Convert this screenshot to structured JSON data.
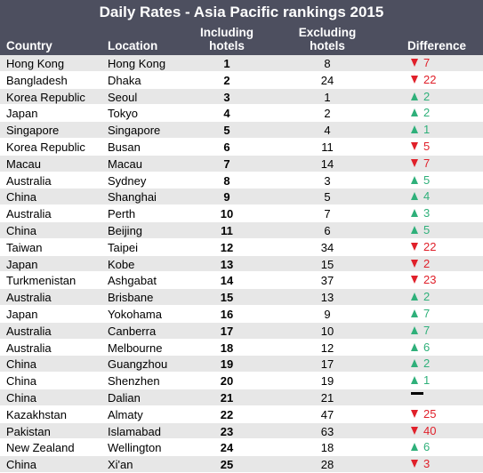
{
  "title": "Daily Rates - Asia Pacific rankings 2015",
  "headers": {
    "country": "Country",
    "location": "Location",
    "including": "Including\nhotels",
    "excluding": "Excluding\nhotels",
    "difference": "Difference"
  },
  "colors": {
    "header_bg": "#4d4f5f",
    "row_alt": "#e7e7e7",
    "down": "#e0202a",
    "up": "#2fb07a"
  },
  "rows": [
    {
      "country": "Hong Kong",
      "location": "Hong Kong",
      "incl": "1",
      "excl": "8",
      "dir": "down",
      "diff": "7"
    },
    {
      "country": "Bangladesh",
      "location": "Dhaka",
      "incl": "2",
      "excl": "24",
      "dir": "down",
      "diff": "22"
    },
    {
      "country": "Korea Republic",
      "location": "Seoul",
      "incl": "3",
      "excl": "1",
      "dir": "up",
      "diff": "2"
    },
    {
      "country": "Japan",
      "location": "Tokyo",
      "incl": "4",
      "excl": "2",
      "dir": "up",
      "diff": "2"
    },
    {
      "country": "Singapore",
      "location": "Singapore",
      "incl": "5",
      "excl": "4",
      "dir": "up",
      "diff": "1"
    },
    {
      "country": "Korea Republic",
      "location": "Busan",
      "incl": "6",
      "excl": "11",
      "dir": "down",
      "diff": "5"
    },
    {
      "country": "Macau",
      "location": "Macau",
      "incl": "7",
      "excl": "14",
      "dir": "down",
      "diff": "7"
    },
    {
      "country": "Australia",
      "location": "Sydney",
      "incl": "8",
      "excl": "3",
      "dir": "up",
      "diff": "5"
    },
    {
      "country": "China",
      "location": "Shanghai",
      "incl": "9",
      "excl": "5",
      "dir": "up",
      "diff": "4"
    },
    {
      "country": "Australia",
      "location": "Perth",
      "incl": "10",
      "excl": "7",
      "dir": "up",
      "diff": "3"
    },
    {
      "country": "China",
      "location": "Beijing",
      "incl": "11",
      "excl": "6",
      "dir": "up",
      "diff": "5"
    },
    {
      "country": "Taiwan",
      "location": "Taipei",
      "incl": "12",
      "excl": "34",
      "dir": "down",
      "diff": "22"
    },
    {
      "country": "Japan",
      "location": "Kobe",
      "incl": "13",
      "excl": "15",
      "dir": "down",
      "diff": "2"
    },
    {
      "country": "Turkmenistan",
      "location": "Ashgabat",
      "incl": "14",
      "excl": "37",
      "dir": "down",
      "diff": "23"
    },
    {
      "country": "Australia",
      "location": "Brisbane",
      "incl": "15",
      "excl": "13",
      "dir": "up",
      "diff": "2"
    },
    {
      "country": "Japan",
      "location": "Yokohama",
      "incl": "16",
      "excl": "9",
      "dir": "up",
      "diff": "7"
    },
    {
      "country": "Australia",
      "location": "Canberra",
      "incl": "17",
      "excl": "10",
      "dir": "up",
      "diff": "7"
    },
    {
      "country": "Australia",
      "location": "Melbourne",
      "incl": "18",
      "excl": "12",
      "dir": "up",
      "diff": "6"
    },
    {
      "country": "China",
      "location": "Guangzhou",
      "incl": "19",
      "excl": "17",
      "dir": "up",
      "diff": "2"
    },
    {
      "country": "China",
      "location": "Shenzhen",
      "incl": "20",
      "excl": "19",
      "dir": "up",
      "diff": "1"
    },
    {
      "country": "China",
      "location": "Dalian",
      "incl": "21",
      "excl": "21",
      "dir": "same",
      "diff": ""
    },
    {
      "country": "Kazakhstan",
      "location": "Almaty",
      "incl": "22",
      "excl": "47",
      "dir": "down",
      "diff": "25"
    },
    {
      "country": "Pakistan",
      "location": "Islamabad",
      "incl": "23",
      "excl": "63",
      "dir": "down",
      "diff": "40"
    },
    {
      "country": "New Zealand",
      "location": "Wellington",
      "incl": "24",
      "excl": "18",
      "dir": "up",
      "diff": "6"
    },
    {
      "country": "China",
      "location": "Xi'an",
      "incl": "25",
      "excl": "28",
      "dir": "down",
      "diff": "3"
    }
  ]
}
